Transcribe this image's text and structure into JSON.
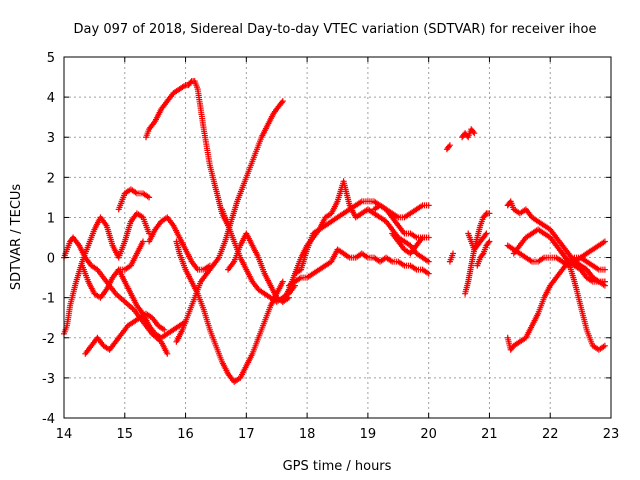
{
  "chart_data": {
    "type": "scatter",
    "title": "Day 097 of 2018, Sidereal Day-to-day VTEC variation (SDTVAR) for receiver ihoe",
    "xlabel": "GPS time / hours",
    "ylabel": "SDTVAR / TECUs",
    "xlim": [
      14,
      23
    ],
    "ylim": [
      -4,
      5
    ],
    "xticks": [
      "14",
      "15",
      "16",
      "17",
      "18",
      "19",
      "20",
      "21",
      "22",
      "23"
    ],
    "yticks": [
      "-4",
      "-3",
      "-2",
      "-1",
      "0",
      "1",
      "2",
      "3",
      "4",
      "5"
    ],
    "grid": true,
    "marker": "plus",
    "color": "#ff0000",
    "series": [
      {
        "x": [
          14.0,
          14.05,
          14.1,
          14.15,
          14.25,
          14.35,
          14.45,
          14.55,
          14.7,
          14.85,
          15.0,
          15.15,
          15.3,
          15.45,
          15.6,
          15.7
        ],
        "y": [
          0.0,
          0.2,
          0.4,
          0.5,
          0.3,
          0.0,
          -0.2,
          -0.3,
          -0.6,
          -0.9,
          -1.1,
          -1.3,
          -1.6,
          -1.9,
          -2.1,
          -2.4
        ]
      },
      {
        "x": [
          14.0,
          14.05,
          14.1,
          14.2,
          14.3,
          14.4,
          14.5,
          14.6,
          14.7,
          14.8,
          14.9,
          15.0,
          15.1,
          15.2,
          15.3,
          15.4
        ],
        "y": [
          -1.9,
          -1.7,
          -1.2,
          -0.6,
          -0.1,
          0.3,
          0.7,
          1.0,
          0.8,
          0.3,
          0.0,
          0.4,
          0.9,
          1.1,
          1.0,
          0.6
        ]
      },
      {
        "x": [
          14.35,
          14.45,
          14.55,
          14.65,
          14.75,
          14.85,
          14.95,
          15.05,
          15.15,
          15.25,
          15.35,
          15.45,
          15.55,
          15.65
        ],
        "y": [
          -2.4,
          -2.2,
          -2.0,
          -2.2,
          -2.3,
          -2.1,
          -1.9,
          -1.7,
          -1.6,
          -1.5,
          -1.4,
          -1.5,
          -1.7,
          -1.8
        ]
      },
      {
        "x": [
          14.3,
          14.4,
          14.5,
          14.6,
          14.7,
          14.8,
          14.9,
          15.0,
          15.1,
          15.2,
          15.3
        ],
        "y": [
          -0.2,
          -0.6,
          -0.9,
          -1.0,
          -0.8,
          -0.5,
          -0.3,
          -0.3,
          -0.2,
          0.1,
          0.4
        ]
      },
      {
        "x": [
          14.9,
          15.0,
          15.1,
          15.2,
          15.3,
          15.4
        ],
        "y": [
          1.2,
          1.6,
          1.7,
          1.6,
          1.6,
          1.5
        ]
      },
      {
        "x": [
          14.9,
          15.0,
          15.1,
          15.2,
          15.3,
          15.4,
          15.5,
          15.6,
          15.7,
          15.8,
          15.9,
          16.0
        ],
        "y": [
          -0.3,
          -0.6,
          -0.9,
          -1.2,
          -1.4,
          -1.7,
          -1.9,
          -2.0,
          -1.9,
          -1.8,
          -1.7,
          -1.6
        ]
      },
      {
        "x": [
          15.4,
          15.5,
          15.6,
          15.7,
          15.8,
          15.9,
          16.0,
          16.1,
          16.2,
          16.3,
          16.4
        ],
        "y": [
          0.4,
          0.7,
          0.9,
          1.0,
          0.8,
          0.5,
          0.2,
          -0.1,
          -0.3,
          -0.3,
          -0.2
        ]
      },
      {
        "x": [
          15.85,
          15.95,
          16.05,
          16.15,
          16.25,
          16.35,
          16.45,
          16.55,
          16.65,
          16.75,
          16.85,
          16.95,
          17.05,
          17.15,
          17.25,
          17.35,
          17.45,
          17.55,
          17.6
        ],
        "y": [
          -2.1,
          -1.8,
          -1.4,
          -1.0,
          -0.6,
          -0.4,
          -0.2,
          0.0,
          0.4,
          0.9,
          1.4,
          1.8,
          2.2,
          2.6,
          3.0,
          3.3,
          3.6,
          3.8,
          3.9
        ]
      },
      {
        "x": [
          15.85,
          15.9,
          16.0,
          16.1,
          16.2,
          16.3,
          16.4,
          16.5,
          16.6,
          16.7,
          16.8,
          16.9,
          17.0,
          17.1,
          17.2,
          17.3,
          17.4,
          17.5,
          17.6
        ],
        "y": [
          0.4,
          0.1,
          -0.3,
          -0.6,
          -0.9,
          -1.3,
          -1.8,
          -2.2,
          -2.6,
          -2.9,
          -3.1,
          -3.0,
          -2.7,
          -2.4,
          -2.0,
          -1.6,
          -1.2,
          -0.9,
          -0.6
        ]
      },
      {
        "x": [
          15.35,
          15.4,
          15.5,
          15.6,
          15.7,
          15.8,
          15.9,
          16.0,
          16.05,
          16.1,
          16.15,
          16.2,
          16.3,
          16.4,
          16.5,
          16.6,
          16.7
        ],
        "y": [
          3.0,
          3.2,
          3.4,
          3.7,
          3.9,
          4.1,
          4.2,
          4.3,
          4.3,
          4.4,
          4.4,
          4.2,
          3.2,
          2.3,
          1.7,
          1.1,
          0.8
        ]
      },
      {
        "x": [
          16.6,
          16.7,
          16.8,
          16.9,
          17.0,
          17.1,
          17.2,
          17.3,
          17.4,
          17.5,
          17.6,
          17.7,
          17.8
        ],
        "y": [
          1.2,
          0.8,
          0.4,
          0.0,
          -0.3,
          -0.6,
          -0.8,
          -0.9,
          -1.0,
          -1.1,
          -1.0,
          -0.9,
          -0.7
        ]
      },
      {
        "x": [
          16.7,
          16.8,
          16.9,
          17.0,
          17.1,
          17.2,
          17.3,
          17.4,
          17.5,
          17.6,
          17.7
        ],
        "y": [
          -0.3,
          -0.1,
          0.3,
          0.6,
          0.3,
          0.0,
          -0.4,
          -0.7,
          -1.0,
          -1.1,
          -1.0
        ]
      },
      {
        "x": [
          17.6,
          17.7,
          17.8,
          17.9,
          18.0,
          18.1,
          18.2,
          18.3,
          18.4,
          18.5,
          18.6,
          18.7,
          18.8,
          18.9,
          19.0,
          19.1,
          19.2,
          19.3,
          19.4,
          19.5,
          19.6,
          19.7,
          19.8,
          19.9,
          20.0
        ],
        "y": [
          -1.1,
          -0.8,
          -0.4,
          0.0,
          0.3,
          0.5,
          0.7,
          0.8,
          0.9,
          1.0,
          1.1,
          1.2,
          1.3,
          1.4,
          1.4,
          1.4,
          1.3,
          1.2,
          1.0,
          0.8,
          0.6,
          0.6,
          0.5,
          0.5,
          0.5
        ]
      },
      {
        "x": [
          17.8,
          17.9,
          18.0,
          18.1,
          18.2,
          18.3,
          18.4,
          18.5,
          18.6,
          18.7,
          18.8,
          18.9,
          19.0,
          19.1,
          19.2,
          19.3,
          19.4,
          19.5,
          19.6,
          19.7,
          19.8,
          19.9,
          20.0
        ],
        "y": [
          -0.4,
          -0.3,
          0.2,
          0.6,
          0.7,
          1.0,
          1.1,
          1.4,
          1.9,
          1.3,
          1.0,
          1.1,
          1.2,
          1.1,
          1.0,
          0.9,
          0.7,
          0.5,
          0.4,
          0.3,
          0.1,
          0.0,
          -0.1
        ]
      },
      {
        "x": [
          17.7,
          17.8,
          17.9,
          18.0,
          18.1,
          18.2,
          18.3,
          18.4,
          18.5,
          18.6,
          18.7,
          18.8,
          18.9,
          19.0,
          19.1,
          19.2,
          19.3,
          19.4,
          19.5,
          19.6,
          19.7,
          19.8,
          19.9,
          20.0
        ],
        "y": [
          -0.7,
          -0.6,
          -0.5,
          -0.5,
          -0.4,
          -0.3,
          -0.2,
          -0.1,
          0.2,
          0.1,
          0.0,
          0.0,
          0.1,
          0.0,
          0.0,
          -0.1,
          0.0,
          -0.1,
          -0.1,
          -0.2,
          -0.2,
          -0.3,
          -0.3,
          -0.4
        ]
      },
      {
        "x": [
          19.1,
          19.2,
          19.3,
          19.4,
          19.5,
          19.6,
          19.7,
          19.8,
          19.9,
          20.0
        ],
        "y": [
          1.2,
          1.3,
          1.2,
          1.1,
          1.0,
          1.0,
          1.1,
          1.2,
          1.3,
          1.3
        ]
      },
      {
        "x": [
          19.4,
          19.5,
          19.6,
          19.7,
          19.8,
          19.9
        ],
        "y": [
          0.6,
          0.4,
          0.2,
          0.1,
          0.3,
          0.5
        ]
      },
      {
        "x": [
          20.3,
          20.35
        ],
        "y": [
          2.7,
          2.8
        ]
      },
      {
        "x": [
          20.55,
          20.6,
          20.65,
          20.7,
          20.75
        ],
        "y": [
          3.0,
          3.1,
          3.0,
          3.2,
          3.1
        ]
      },
      {
        "x": [
          20.35,
          20.4
        ],
        "y": [
          -0.1,
          0.1
        ]
      },
      {
        "x": [
          20.6,
          20.65,
          20.7,
          20.75,
          20.8,
          20.85,
          20.9,
          20.95,
          21.0
        ],
        "y": [
          -0.9,
          -0.6,
          -0.2,
          0.2,
          0.5,
          0.8,
          1.0,
          1.1,
          1.1
        ]
      },
      {
        "x": [
          20.65,
          20.7,
          20.75,
          20.8,
          20.85,
          20.9,
          20.95
        ],
        "y": [
          0.6,
          0.4,
          0.2,
          0.3,
          0.4,
          0.5,
          0.6
        ]
      },
      {
        "x": [
          20.8,
          20.85,
          20.9,
          20.95,
          21.0
        ],
        "y": [
          -0.2,
          0.0,
          0.1,
          0.3,
          0.4
        ]
      },
      {
        "x": [
          21.3,
          21.35,
          21.4,
          21.5,
          21.6,
          21.7,
          21.8,
          21.9,
          22.0,
          22.1,
          22.2,
          22.3,
          22.4,
          22.5,
          22.6,
          22.7,
          22.8,
          22.9
        ],
        "y": [
          1.3,
          1.4,
          1.2,
          1.1,
          1.2,
          1.0,
          0.9,
          0.8,
          0.7,
          0.5,
          0.3,
          0.1,
          -0.1,
          -0.2,
          -0.3,
          -0.5,
          -0.6,
          -0.6
        ]
      },
      {
        "x": [
          21.3,
          21.4,
          21.5,
          21.6,
          21.7,
          21.8,
          21.9,
          22.0,
          22.1,
          22.2,
          22.3,
          22.4,
          22.5,
          22.6,
          22.7,
          22.8,
          22.9
        ],
        "y": [
          0.3,
          0.2,
          0.1,
          0.0,
          -0.1,
          -0.1,
          0.0,
          0.0,
          0.0,
          -0.1,
          -0.2,
          -0.1,
          -0.2,
          -0.3,
          -0.5,
          -0.6,
          -0.6
        ]
      },
      {
        "x": [
          21.4,
          21.5,
          21.6,
          21.7,
          21.8,
          21.9,
          22.0,
          22.1,
          22.2,
          22.3,
          22.4,
          22.5,
          22.6,
          22.7,
          22.8,
          22.9
        ],
        "y": [
          0.1,
          0.3,
          0.5,
          0.6,
          0.7,
          0.6,
          0.5,
          0.3,
          0.1,
          -0.1,
          -0.2,
          -0.3,
          -0.5,
          -0.6,
          -0.6,
          -0.7
        ]
      },
      {
        "x": [
          21.3,
          21.35,
          21.4,
          21.5,
          21.6,
          21.7,
          21.8,
          21.9,
          22.0,
          22.1,
          22.2,
          22.3
        ],
        "y": [
          -2.0,
          -2.3,
          -2.2,
          -2.1,
          -2.0,
          -1.7,
          -1.4,
          -1.0,
          -0.7,
          -0.5,
          -0.3,
          -0.1
        ]
      },
      {
        "x": [
          22.2,
          22.3,
          22.4,
          22.5,
          22.6,
          22.7,
          22.8,
          22.9
        ],
        "y": [
          0.1,
          -0.1,
          -0.6,
          -1.2,
          -1.8,
          -2.2,
          -2.3,
          -2.2
        ]
      },
      {
        "x": [
          22.3,
          22.4,
          22.5,
          22.6,
          22.7,
          22.8,
          22.9
        ],
        "y": [
          -0.2,
          -0.1,
          0.0,
          0.1,
          0.2,
          0.3,
          0.4
        ]
      },
      {
        "x": [
          22.3,
          22.4,
          22.5,
          22.6,
          22.7,
          22.8,
          22.9
        ],
        "y": [
          -0.1,
          0.0,
          0.0,
          -0.1,
          -0.2,
          -0.3,
          -0.3
        ]
      }
    ]
  }
}
